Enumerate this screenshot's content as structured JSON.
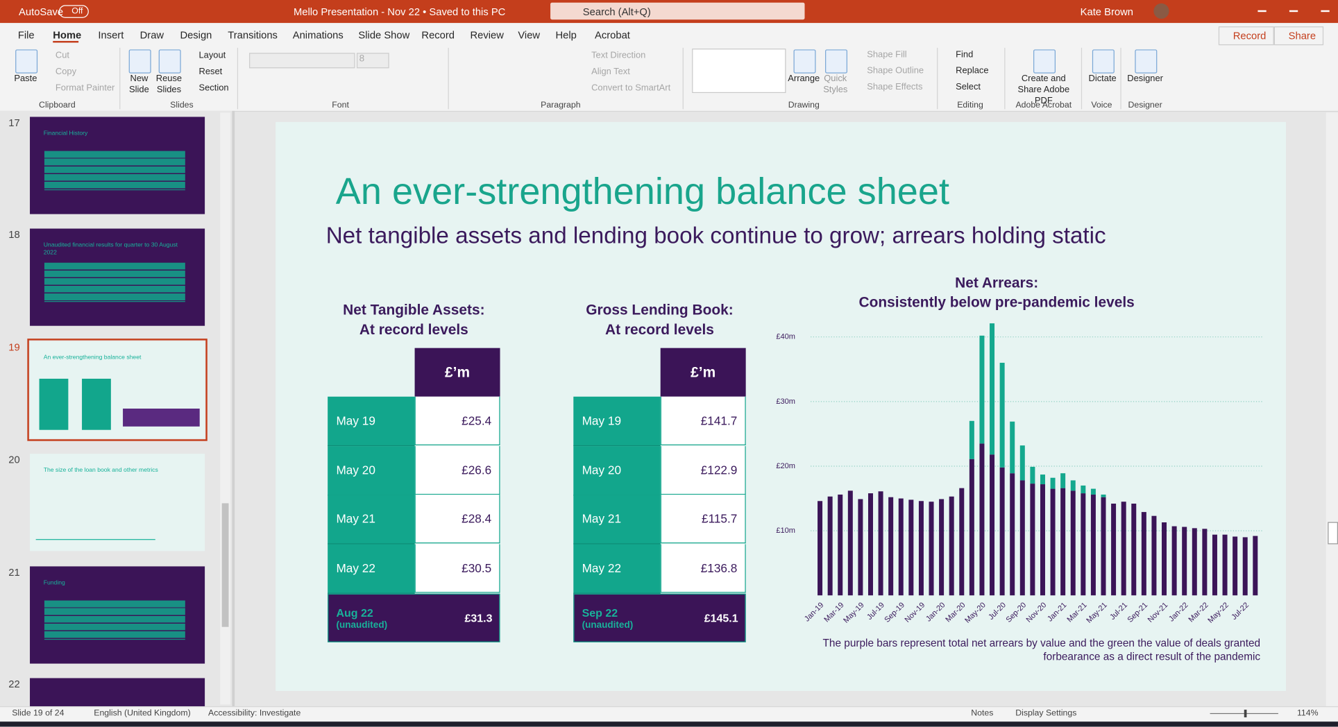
{
  "title_bar": {
    "autosave": "AutoSave",
    "autosave_state": "Off",
    "document": "Mello Presentation - Nov 22 • Saved to this PC",
    "search": "Search (Alt+Q)",
    "user": "Kate Brown"
  },
  "tabs": [
    "File",
    "Home",
    "Insert",
    "Draw",
    "Design",
    "Transitions",
    "Animations",
    "Slide Show",
    "Record",
    "Review",
    "View",
    "Help",
    "Acrobat"
  ],
  "tab_buttons": [
    "Record",
    "Share"
  ],
  "ribbon": {
    "groups": [
      "Clipboard",
      "Slides",
      "Font",
      "Paragraph",
      "Drawing",
      "Editing",
      "Adobe Acrobat",
      "Voice",
      "Designer"
    ],
    "buttons": [
      "Paste",
      "Cut",
      "Copy",
      "Format Painter",
      "New Slide",
      "Reuse Slides",
      "Layout",
      "Reset",
      "Section",
      "Text Direction",
      "Align Text",
      "Convert to SmartArt",
      "Arrange",
      "Quick Styles",
      "Shape Fill",
      "Shape Outline",
      "Shape Effects",
      "Find",
      "Replace",
      "Select",
      "Create and Share Adobe PDF",
      "Dictate",
      "Designer"
    ],
    "font_size": "8"
  },
  "thumbnails": [
    {
      "number": "17",
      "title": "Financial History"
    },
    {
      "number": "18",
      "title": "Unaudited financial results for quarter to 30 August 2022"
    },
    {
      "number": "19",
      "title": "An ever-strengthening balance sheet"
    },
    {
      "number": "20",
      "title": "The size of the loan book and other metrics"
    },
    {
      "number": "21",
      "title": "Funding"
    },
    {
      "number": "22"
    }
  ],
  "slide": {
    "title": "An ever-strengthening balance sheet",
    "subtitle": "Net tangible assets and lending book continue to grow; arrears holding static",
    "tables": [
      {
        "heading": [
          "Net Tangible Assets:",
          "At record levels"
        ],
        "unit": "£’m",
        "rows": [
          [
            "May 19",
            "£25.4"
          ],
          [
            "May 20",
            "£26.6"
          ],
          [
            "May 21",
            "£28.4"
          ],
          [
            "May 22",
            "£30.5"
          ]
        ],
        "total": [
          "Aug 22",
          "(unaudited)",
          "£31.3"
        ]
      },
      {
        "heading": [
          "Gross Lending Book:",
          "At record levels"
        ],
        "unit": "£’m",
        "rows": [
          [
            "May 19",
            "£141.7"
          ],
          [
            "May 20",
            "£122.9"
          ],
          [
            "May 21",
            "£115.7"
          ],
          [
            "May 22",
            "£136.8"
          ]
        ],
        "total": [
          "Sep 22",
          "(unaudited)",
          "£145.1"
        ]
      }
    ]
  },
  "chart_data": {
    "type": "bar",
    "stacked": true,
    "title": "Net Arrears:",
    "subtitle": "Consistently below pre-pandemic levels",
    "categories": [
      "Jan-19",
      null,
      "Mar-19",
      null,
      "May-19",
      null,
      "Jul-19",
      null,
      "Sep-19",
      null,
      "Nov-19",
      null,
      "Jan-20",
      null,
      "Mar-20",
      null,
      "May-20",
      null,
      "Jul-20",
      null,
      "Sep-20",
      null,
      "Nov-20",
      null,
      "Jan-21",
      null,
      "Mar-21",
      null,
      "May-21",
      null,
      "Jul-21",
      null,
      "Sep-21",
      null,
      "Nov-21",
      null,
      "Jan-22",
      null,
      "Mar-22",
      null,
      "May-22",
      null,
      "Jul-22",
      null
    ],
    "series": [
      {
        "color": "#3b1457",
        "values": [
          14.6,
          15.3,
          15.6,
          16.2,
          14.9,
          15.8,
          16.1,
          15.2,
          15.0,
          14.8,
          14.6,
          14.5,
          14.9,
          15.3,
          16.6,
          21.1,
          23.5,
          21.8,
          19.8,
          18.9,
          17.8,
          17.3,
          17.2,
          16.5,
          16.6,
          16.2,
          15.8,
          15.6,
          15.2,
          14.2,
          14.5,
          14.2,
          12.9,
          12.3,
          11.3,
          10.7,
          10.6,
          10.4,
          10.3,
          9.4,
          9.4,
          9.1,
          9.0,
          9.2
        ]
      },
      {
        "color": "#14a88e",
        "values": [
          0,
          0,
          0,
          0,
          0,
          0,
          0,
          0,
          0,
          0,
          0,
          0,
          0,
          0,
          0,
          5.9,
          16.7,
          20.3,
          16.2,
          8.0,
          5.4,
          2.6,
          1.5,
          1.7,
          2.3,
          1.6,
          1.2,
          0.9,
          0.4,
          0,
          0,
          0,
          0,
          0,
          0,
          0,
          0,
          0,
          0,
          0,
          0,
          0,
          0,
          0
        ]
      }
    ],
    "ylim": [
      0,
      40
    ],
    "yticks": [
      {
        "value": 10,
        "label": "£10m"
      },
      {
        "value": 20,
        "label": "£20m"
      },
      {
        "value": 30,
        "label": "£30m"
      },
      {
        "value": 40,
        "label": "£40m"
      }
    ],
    "grid": true,
    "caption": [
      "The purple bars represent total net arrears by value and the green the value of deals granted",
      "forbearance as a direct result of the pandemic"
    ]
  },
  "status_bar": {
    "slide": "Slide 19 of 24",
    "language": "English (United Kingdom)",
    "accessibility": "Accessibility: Investigate",
    "notes": "Notes",
    "display": "Display Settings",
    "zoom": "114%"
  }
}
